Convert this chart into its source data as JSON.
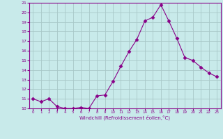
{
  "x": [
    0,
    1,
    2,
    3,
    4,
    5,
    6,
    7,
    8,
    9,
    10,
    11,
    12,
    13,
    14,
    15,
    16,
    17,
    18,
    19,
    20,
    21,
    22,
    23
  ],
  "y": [
    11.0,
    10.7,
    11.0,
    10.2,
    10.0,
    10.0,
    10.1,
    10.0,
    11.3,
    11.4,
    12.8,
    14.4,
    15.9,
    17.2,
    19.1,
    19.5,
    20.8,
    19.1,
    17.3,
    15.3,
    15.0,
    14.3,
    13.7,
    13.3
  ],
  "line_color": "#880088",
  "marker": "D",
  "marker_size": 2.5,
  "bg_color": "#c8eaea",
  "grid_color": "#a8c8c8",
  "xlabel": "Windchill (Refroidissement éolien,°C)",
  "ylim": [
    10,
    21
  ],
  "xlim": [
    -0.5,
    23.5
  ],
  "yticks": [
    10,
    11,
    12,
    13,
    14,
    15,
    16,
    17,
    18,
    19,
    20,
    21
  ],
  "xticks": [
    0,
    1,
    2,
    3,
    4,
    5,
    6,
    7,
    8,
    9,
    10,
    11,
    12,
    13,
    14,
    15,
    16,
    17,
    18,
    19,
    20,
    21,
    22,
    23
  ],
  "tick_color": "#880088",
  "label_color": "#880088",
  "axis_color": "#880088"
}
